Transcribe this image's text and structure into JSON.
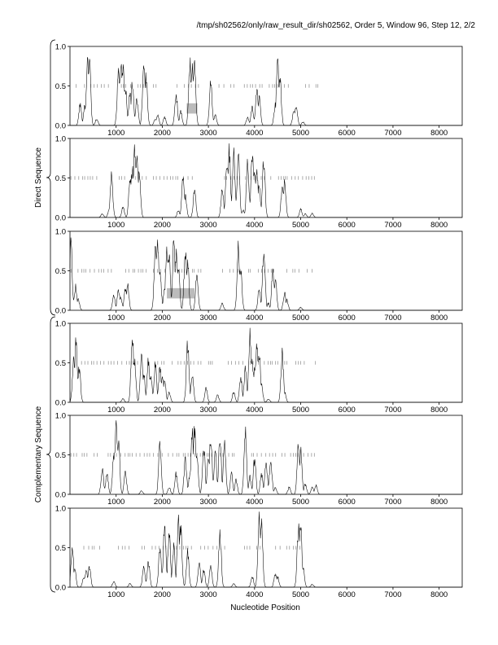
{
  "header": {
    "title": "/tmp/sh02562/only/raw_result_dir/sh02562, Order 5, Window 96, Step 12, 2/2"
  },
  "colors": {
    "line": "#000000",
    "marker": "#888888",
    "highlight": "#bbbbbb"
  },
  "chart_data": {
    "type": "line",
    "xlabel": "Nucleotide Position",
    "xlim": [
      0,
      8500
    ],
    "ylim": [
      0,
      1.0
    ],
    "xticks": [
      1000,
      2000,
      3000,
      4000,
      5000,
      6000,
      7000,
      8000
    ],
    "yticks": [
      0.0,
      0.5,
      1.0
    ],
    "ytick_labels": [
      "0.0",
      "0.5",
      "1.0"
    ],
    "groups": [
      {
        "label": "Direct Sequence",
        "panels": [
          0,
          1,
          2
        ]
      },
      {
        "label": "Complementary Sequence",
        "panels": [
          3,
          4,
          5
        ]
      }
    ],
    "panels": [
      {
        "peaks": [
          [
            220,
            0.3
          ],
          [
            320,
            0.28
          ],
          [
            380,
            0.9
          ],
          [
            420,
            1.0
          ],
          [
            580,
            0.1
          ],
          [
            1050,
            0.75
          ],
          [
            1100,
            0.95
          ],
          [
            1150,
            0.8
          ],
          [
            1200,
            0.55
          ],
          [
            1300,
            0.45
          ],
          [
            1350,
            0.6
          ],
          [
            1450,
            0.4
          ],
          [
            1600,
            0.9
          ],
          [
            1650,
            0.7
          ],
          [
            1850,
            0.1
          ],
          [
            1900,
            0.15
          ],
          [
            2050,
            0.12
          ],
          [
            2300,
            0.45
          ],
          [
            2400,
            0.2
          ],
          [
            2600,
            0.9
          ],
          [
            2650,
            0.92
          ],
          [
            2700,
            0.88
          ],
          [
            3050,
            0.65
          ],
          [
            3150,
            0.15
          ],
          [
            3850,
            0.12
          ],
          [
            3950,
            0.25
          ],
          [
            4050,
            0.55
          ],
          [
            4100,
            0.4
          ],
          [
            4450,
            0.3
          ],
          [
            4500,
            0.95
          ],
          [
            4550,
            0.7
          ],
          [
            4850,
            0.2
          ],
          [
            4900,
            0.3
          ],
          [
            5050,
            0.05
          ]
        ],
        "marker_range": [
          40,
          5420
        ],
        "marker_gaps": [
          [
            880,
            1050
          ],
          [
            1950,
            2200
          ],
          [
            2850,
            3150
          ]
        ],
        "highlight_boxes": [
          {
            "x0": 2530,
            "x1": 2760,
            "y0": 0.15,
            "y1": 0.28
          }
        ]
      },
      {
        "peaks": [
          [
            700,
            0.05
          ],
          [
            850,
            0.1
          ],
          [
            900,
            0.6
          ],
          [
            1150,
            0.15
          ],
          [
            1300,
            0.6
          ],
          [
            1350,
            0.7
          ],
          [
            1400,
            0.95
          ],
          [
            1450,
            1.0
          ],
          [
            1500,
            0.7
          ],
          [
            2350,
            0.1
          ],
          [
            2450,
            0.6
          ],
          [
            2500,
            0.3
          ],
          [
            2700,
            0.4
          ],
          [
            3300,
            0.4
          ],
          [
            3400,
            0.8
          ],
          [
            3450,
            0.95
          ],
          [
            3550,
            1.0
          ],
          [
            3650,
            0.85
          ],
          [
            3750,
            0.1
          ],
          [
            3850,
            0.8
          ],
          [
            3950,
            0.9
          ],
          [
            4000,
            0.6
          ],
          [
            4050,
            0.7
          ],
          [
            4100,
            0.45
          ],
          [
            4200,
            0.85
          ],
          [
            4600,
            0.4
          ],
          [
            4650,
            0.5
          ],
          [
            5000,
            0.12
          ],
          [
            5100,
            0.05
          ],
          [
            5250,
            0.06
          ]
        ],
        "marker_range": [
          20,
          5330
        ],
        "marker_gaps": [
          [
            600,
            800
          ],
          [
            2750,
            3200
          ]
        ],
        "highlight_boxes": []
      },
      {
        "peaks": [
          [
            20,
            0.95
          ],
          [
            120,
            0.35
          ],
          [
            180,
            0.15
          ],
          [
            950,
            0.2
          ],
          [
            1050,
            0.3
          ],
          [
            1100,
            0.2
          ],
          [
            1200,
            0.3
          ],
          [
            1250,
            0.35
          ],
          [
            1850,
            0.85
          ],
          [
            1900,
            0.9
          ],
          [
            1950,
            0.55
          ],
          [
            2050,
            0.3
          ],
          [
            2100,
            0.9
          ],
          [
            2150,
            0.75
          ],
          [
            2250,
            0.95
          ],
          [
            2300,
            0.8
          ],
          [
            2350,
            0.6
          ],
          [
            2500,
            0.85
          ],
          [
            2550,
            0.7
          ],
          [
            2750,
            0.5
          ],
          [
            3300,
            0.1
          ],
          [
            3650,
            0.9
          ],
          [
            3700,
            0.6
          ],
          [
            4100,
            0.3
          ],
          [
            4200,
            0.9
          ],
          [
            4300,
            0.1
          ],
          [
            4400,
            0.6
          ],
          [
            4450,
            0.45
          ],
          [
            4650,
            0.25
          ],
          [
            4700,
            0.15
          ],
          [
            5000,
            0.04
          ]
        ],
        "marker_range": [
          20,
          5360
        ],
        "marker_gaps": [
          [
            900,
            1120
          ],
          [
            2900,
            3250
          ]
        ],
        "highlight_boxes": [
          {
            "x0": 2100,
            "x1": 2700,
            "y0": 0.15,
            "y1": 0.28
          }
        ]
      },
      {
        "peaks": [
          [
            80,
            0.6
          ],
          [
            130,
            0.9
          ],
          [
            200,
            0.5
          ],
          [
            1150,
            0.05
          ],
          [
            1350,
            1.0
          ],
          [
            1400,
            0.6
          ],
          [
            1550,
            0.7
          ],
          [
            1600,
            0.4
          ],
          [
            1700,
            0.6
          ],
          [
            1750,
            0.4
          ],
          [
            1850,
            0.55
          ],
          [
            1950,
            0.5
          ],
          [
            2000,
            0.4
          ],
          [
            2050,
            0.3
          ],
          [
            2150,
            0.15
          ],
          [
            2550,
            0.85
          ],
          [
            2650,
            0.4
          ],
          [
            2950,
            0.2
          ],
          [
            3200,
            0.1
          ],
          [
            3550,
            0.15
          ],
          [
            3700,
            0.35
          ],
          [
            3800,
            0.5
          ],
          [
            3900,
            1.0
          ],
          [
            3950,
            0.6
          ],
          [
            4000,
            0.5
          ],
          [
            4050,
            0.82
          ],
          [
            4100,
            0.7
          ],
          [
            4150,
            0.25
          ],
          [
            4300,
            0.05
          ],
          [
            4600,
            0.7
          ],
          [
            4650,
            0.15
          ]
        ],
        "marker_range": [
          250,
          5350
        ],
        "marker_gaps": [
          [
            1500,
            1650
          ],
          [
            3100,
            3350
          ]
        ],
        "highlight_boxes": []
      },
      {
        "peaks": [
          [
            700,
            0.35
          ],
          [
            800,
            0.3
          ],
          [
            950,
            0.6
          ],
          [
            1000,
            0.95
          ],
          [
            1050,
            0.8
          ],
          [
            1200,
            0.3
          ],
          [
            1550,
            0.05
          ],
          [
            1950,
            0.7
          ],
          [
            2150,
            0.1
          ],
          [
            2300,
            0.3
          ],
          [
            2500,
            0.5
          ],
          [
            2600,
            0.3
          ],
          [
            2650,
            0.85
          ],
          [
            2700,
            0.95
          ],
          [
            2750,
            0.6
          ],
          [
            2900,
            0.7
          ],
          [
            3000,
            0.5
          ],
          [
            3050,
            0.85
          ],
          [
            3150,
            0.6
          ],
          [
            3250,
            0.8
          ],
          [
            3350,
            0.7
          ],
          [
            3500,
            0.3
          ],
          [
            3600,
            0.2
          ],
          [
            3800,
            0.95
          ],
          [
            3900,
            0.25
          ],
          [
            4000,
            0.5
          ],
          [
            4150,
            0.3
          ],
          [
            4250,
            0.45
          ],
          [
            4350,
            0.5
          ],
          [
            4450,
            0.1
          ],
          [
            4750,
            0.1
          ],
          [
            4950,
            0.7
          ],
          [
            5000,
            0.65
          ],
          [
            5100,
            0.15
          ],
          [
            5250,
            0.1
          ],
          [
            5330,
            0.13
          ]
        ],
        "marker_range": [
          20,
          5300
        ],
        "marker_gaps": [
          [
            650,
            820
          ],
          [
            3700,
            3800
          ]
        ],
        "highlight_boxes": []
      },
      {
        "peaks": [
          [
            50,
            0.55
          ],
          [
            100,
            0.3
          ],
          [
            300,
            0.15
          ],
          [
            350,
            0.25
          ],
          [
            420,
            0.3
          ],
          [
            950,
            0.08
          ],
          [
            1300,
            0.05
          ],
          [
            1600,
            0.3
          ],
          [
            1700,
            0.35
          ],
          [
            1950,
            0.6
          ],
          [
            2050,
            0.85
          ],
          [
            2150,
            0.8
          ],
          [
            2250,
            0.6
          ],
          [
            2350,
            0.95
          ],
          [
            2400,
            0.85
          ],
          [
            2550,
            0.5
          ],
          [
            2800,
            0.35
          ],
          [
            2900,
            0.25
          ],
          [
            3050,
            0.3
          ],
          [
            3250,
            0.8
          ],
          [
            3550,
            0.05
          ],
          [
            3950,
            0.15
          ],
          [
            4100,
            1.0
          ],
          [
            4150,
            0.9
          ],
          [
            4450,
            0.2
          ],
          [
            4500,
            0.15
          ],
          [
            4950,
            0.85
          ],
          [
            5000,
            0.9
          ],
          [
            5050,
            0.3
          ],
          [
            5250,
            0.04
          ]
        ],
        "marker_range": [
          300,
          5100
        ],
        "marker_gaps": [
          [
            1400,
            1550
          ],
          [
            2650,
            2820
          ],
          [
            3400,
            3650
          ]
        ],
        "highlight_boxes": []
      }
    ]
  }
}
